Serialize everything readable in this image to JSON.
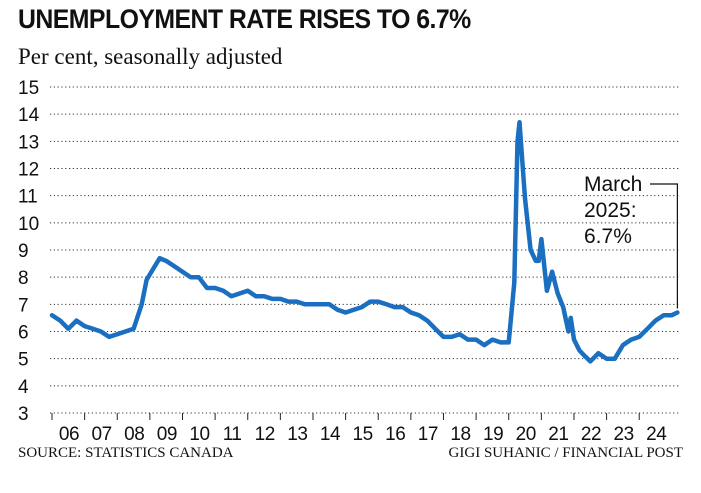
{
  "header": {
    "title": "UNEMPLOYMENT RATE RISES TO 6.7%",
    "subtitle": "Per cent, seasonally adjusted"
  },
  "footer": {
    "source": "SOURCE: STATISTICS CANADA",
    "credit": "GIGI SUHANIC / FINANCIAL POST"
  },
  "chart_data": {
    "type": "line",
    "title": "UNEMPLOYMENT RATE RISES TO 6.7%",
    "subtitle": "Per cent, seasonally adjusted",
    "ylim": [
      3,
      15
    ],
    "yticks": [
      3,
      4,
      5,
      6,
      7,
      8,
      9,
      10,
      11,
      12,
      13,
      14,
      15
    ],
    "xlim": [
      2006.0,
      2025.25
    ],
    "xticks": [
      {
        "label": "06",
        "x": 2006
      },
      {
        "label": "07",
        "x": 2007
      },
      {
        "label": "08",
        "x": 2008
      },
      {
        "label": "09",
        "x": 2009
      },
      {
        "label": "10",
        "x": 2010
      },
      {
        "label": "11",
        "x": 2011
      },
      {
        "label": "12",
        "x": 2012
      },
      {
        "label": "13",
        "x": 2013
      },
      {
        "label": "14",
        "x": 2014
      },
      {
        "label": "15",
        "x": 2015
      },
      {
        "label": "16",
        "x": 2016
      },
      {
        "label": "17",
        "x": 2017
      },
      {
        "label": "18",
        "x": 2018
      },
      {
        "label": "19",
        "x": 2019
      },
      {
        "label": "20",
        "x": 2020
      },
      {
        "label": "21",
        "x": 2021
      },
      {
        "label": "22",
        "x": 2022
      },
      {
        "label": "23",
        "x": 2023
      },
      {
        "label": "24",
        "x": 2024
      }
    ],
    "grid": "horizontal-dotted",
    "color": "#1a6fc0",
    "series": [
      {
        "points": [
          [
            2006.0,
            6.6
          ],
          [
            2006.25,
            6.4
          ],
          [
            2006.5,
            6.1
          ],
          [
            2006.75,
            6.4
          ],
          [
            2007.0,
            6.2
          ],
          [
            2007.25,
            6.1
          ],
          [
            2007.5,
            6.0
          ],
          [
            2007.75,
            5.8
          ],
          [
            2008.0,
            5.9
          ],
          [
            2008.25,
            6.0
          ],
          [
            2008.5,
            6.1
          ],
          [
            2008.75,
            7.0
          ],
          [
            2008.9,
            7.9
          ],
          [
            2009.1,
            8.3
          ],
          [
            2009.3,
            8.7
          ],
          [
            2009.5,
            8.6
          ],
          [
            2009.75,
            8.4
          ],
          [
            2010.0,
            8.2
          ],
          [
            2010.25,
            8.0
          ],
          [
            2010.5,
            8.0
          ],
          [
            2010.75,
            7.6
          ],
          [
            2011.0,
            7.6
          ],
          [
            2011.25,
            7.5
          ],
          [
            2011.5,
            7.3
          ],
          [
            2011.75,
            7.4
          ],
          [
            2012.0,
            7.5
          ],
          [
            2012.25,
            7.3
          ],
          [
            2012.5,
            7.3
          ],
          [
            2012.75,
            7.2
          ],
          [
            2013.0,
            7.2
          ],
          [
            2013.25,
            7.1
          ],
          [
            2013.5,
            7.1
          ],
          [
            2013.75,
            7.0
          ],
          [
            2014.0,
            7.0
          ],
          [
            2014.25,
            7.0
          ],
          [
            2014.5,
            7.0
          ],
          [
            2014.75,
            6.8
          ],
          [
            2015.0,
            6.7
          ],
          [
            2015.25,
            6.8
          ],
          [
            2015.5,
            6.9
          ],
          [
            2015.75,
            7.1
          ],
          [
            2016.0,
            7.1
          ],
          [
            2016.25,
            7.0
          ],
          [
            2016.5,
            6.9
          ],
          [
            2016.75,
            6.9
          ],
          [
            2017.0,
            6.7
          ],
          [
            2017.25,
            6.6
          ],
          [
            2017.5,
            6.4
          ],
          [
            2017.75,
            6.1
          ],
          [
            2018.0,
            5.8
          ],
          [
            2018.25,
            5.8
          ],
          [
            2018.5,
            5.9
          ],
          [
            2018.75,
            5.7
          ],
          [
            2019.0,
            5.7
          ],
          [
            2019.25,
            5.5
          ],
          [
            2019.5,
            5.7
          ],
          [
            2019.75,
            5.6
          ],
          [
            2020.0,
            5.6
          ],
          [
            2020.17,
            7.8
          ],
          [
            2020.27,
            13.0
          ],
          [
            2020.33,
            13.7
          ],
          [
            2020.5,
            10.9
          ],
          [
            2020.67,
            9.0
          ],
          [
            2020.83,
            8.6
          ],
          [
            2020.92,
            8.6
          ],
          [
            2021.0,
            9.4
          ],
          [
            2021.17,
            7.5
          ],
          [
            2021.33,
            8.2
          ],
          [
            2021.5,
            7.4
          ],
          [
            2021.67,
            6.9
          ],
          [
            2021.83,
            6.0
          ],
          [
            2021.9,
            6.5
          ],
          [
            2022.0,
            5.7
          ],
          [
            2022.17,
            5.3
          ],
          [
            2022.33,
            5.1
          ],
          [
            2022.5,
            4.9
          ],
          [
            2022.75,
            5.2
          ],
          [
            2023.0,
            5.0
          ],
          [
            2023.25,
            5.0
          ],
          [
            2023.5,
            5.5
          ],
          [
            2023.75,
            5.7
          ],
          [
            2024.0,
            5.8
          ],
          [
            2024.25,
            6.1
          ],
          [
            2024.5,
            6.4
          ],
          [
            2024.75,
            6.6
          ],
          [
            2025.0,
            6.6
          ],
          [
            2025.17,
            6.7
          ]
        ]
      }
    ],
    "annotation": {
      "lines": [
        "March",
        "2025:",
        "6.7%"
      ],
      "x": 2025.17,
      "y": 6.7
    }
  }
}
